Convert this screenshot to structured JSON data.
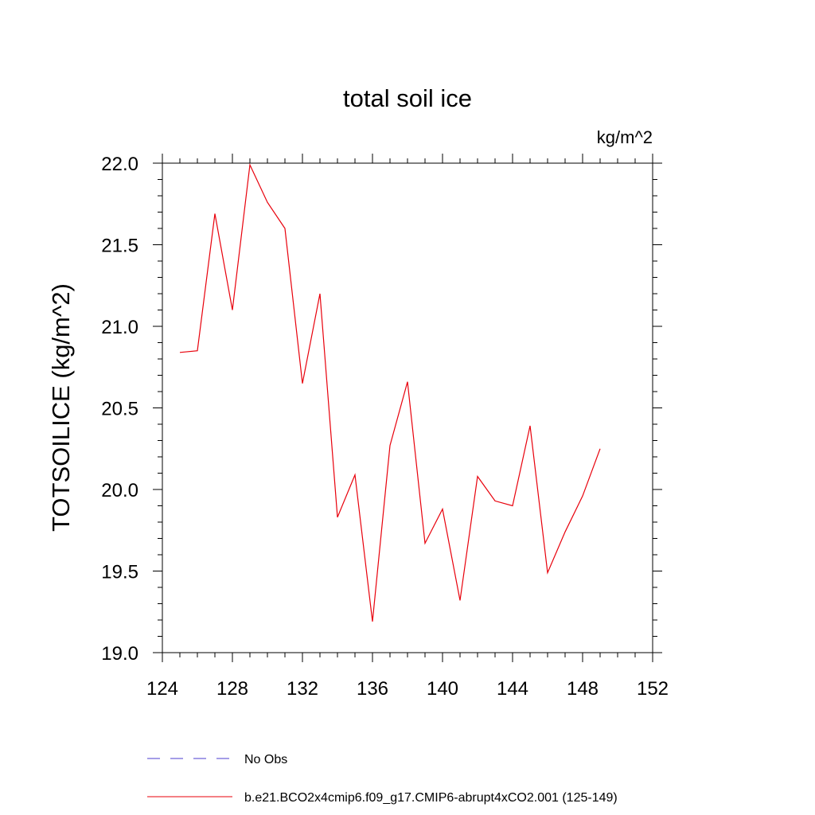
{
  "chart_data": {
    "type": "line",
    "title": "total soil ice",
    "units_label": "kg/m^2",
    "xlabel": "",
    "ylabel": "TOTSOILICE  (kg/m^2)",
    "xlim": [
      124,
      152
    ],
    "ylim": [
      19.0,
      22.0
    ],
    "x_ticks": [
      "124",
      "128",
      "132",
      "136",
      "140",
      "144",
      "148",
      "152"
    ],
    "y_ticks": [
      "19.0",
      "19.5",
      "20.0",
      "20.5",
      "21.0",
      "21.5",
      "22.0"
    ],
    "grid": false,
    "legend_position": "bottom-left",
    "series": [
      {
        "name": "No Obs",
        "style": "dashed",
        "color": "#4b3ccf",
        "x": [],
        "values": []
      },
      {
        "name": "b.e21.BCO2x4cmip6.f09_g17.CMIP6-abrupt4xCO2.001 (125-149)",
        "style": "solid",
        "color": "#e8000b",
        "x": [
          125,
          126,
          127,
          128,
          129,
          130,
          131,
          132,
          133,
          134,
          135,
          136,
          137,
          138,
          139,
          140,
          141,
          142,
          143,
          144,
          145,
          146,
          147,
          148,
          149
        ],
        "values": [
          20.84,
          20.85,
          21.69,
          21.1,
          21.99,
          21.76,
          21.6,
          20.65,
          21.2,
          19.83,
          20.09,
          19.19,
          20.27,
          20.66,
          19.67,
          19.88,
          19.32,
          20.08,
          19.93,
          19.9,
          20.39,
          19.49,
          19.74,
          19.96,
          20.25
        ]
      }
    ]
  }
}
